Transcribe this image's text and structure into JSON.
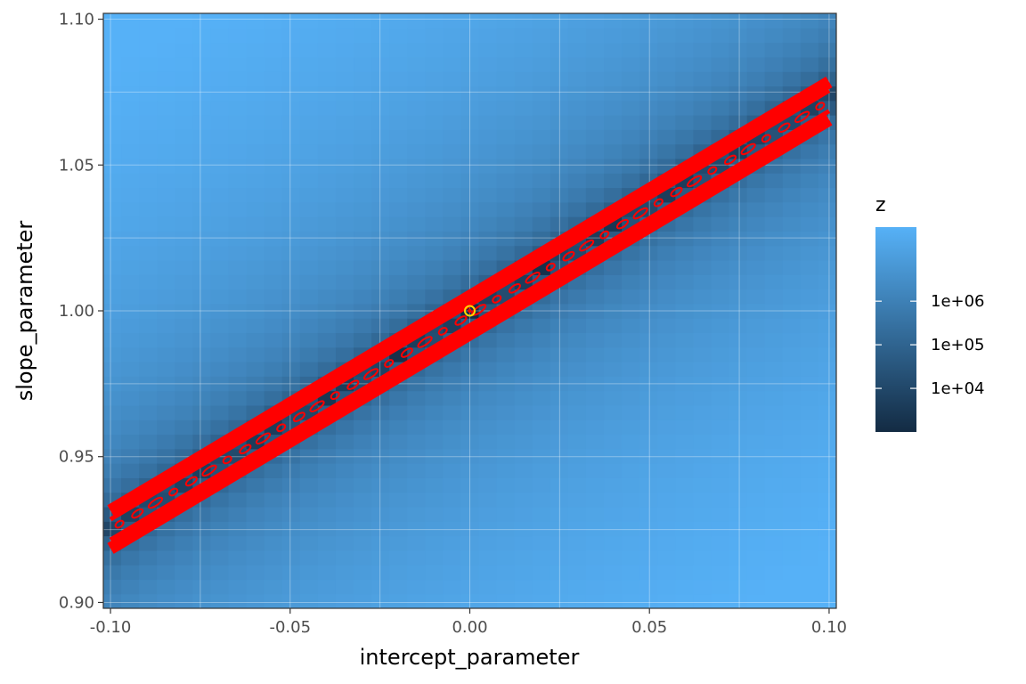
{
  "chart_data": {
    "type": "heatmap",
    "xlabel": "intercept_parameter",
    "ylabel": "slope_parameter",
    "xlim": [
      -0.102,
      0.102
    ],
    "ylim": [
      0.898,
      1.102
    ],
    "x_ticks": [
      -0.1,
      -0.05,
      0.0,
      0.05,
      0.1
    ],
    "x_tick_labels": [
      "-0.10",
      "-0.05",
      "0.00",
      "0.05",
      "0.10"
    ],
    "y_ticks": [
      0.9,
      0.95,
      1.0,
      1.05,
      1.1
    ],
    "y_tick_labels": [
      "0.90",
      "0.95",
      "1.00",
      "1.05",
      "1.10"
    ],
    "grid": true,
    "fill_scale": {
      "name": "z",
      "transform": "log10",
      "range": [
        1000,
        50000000
      ],
      "breaks": [
        10000,
        100000,
        1000000
      ],
      "break_labels": [
        "1e+04",
        "1e+05",
        "1e+06"
      ],
      "low_color": "#132B43",
      "high_color": "#56B1F7"
    },
    "valley": {
      "description_x": [
        -0.1,
        0.1
      ],
      "slope_at_x": [
        0.925,
        1.072
      ],
      "contour_color": "#FF0000"
    },
    "optimum_point": {
      "x": 0.0,
      "y": 1.0,
      "color": "#FFD700"
    },
    "legend": {
      "position": "right",
      "title": "z"
    }
  }
}
